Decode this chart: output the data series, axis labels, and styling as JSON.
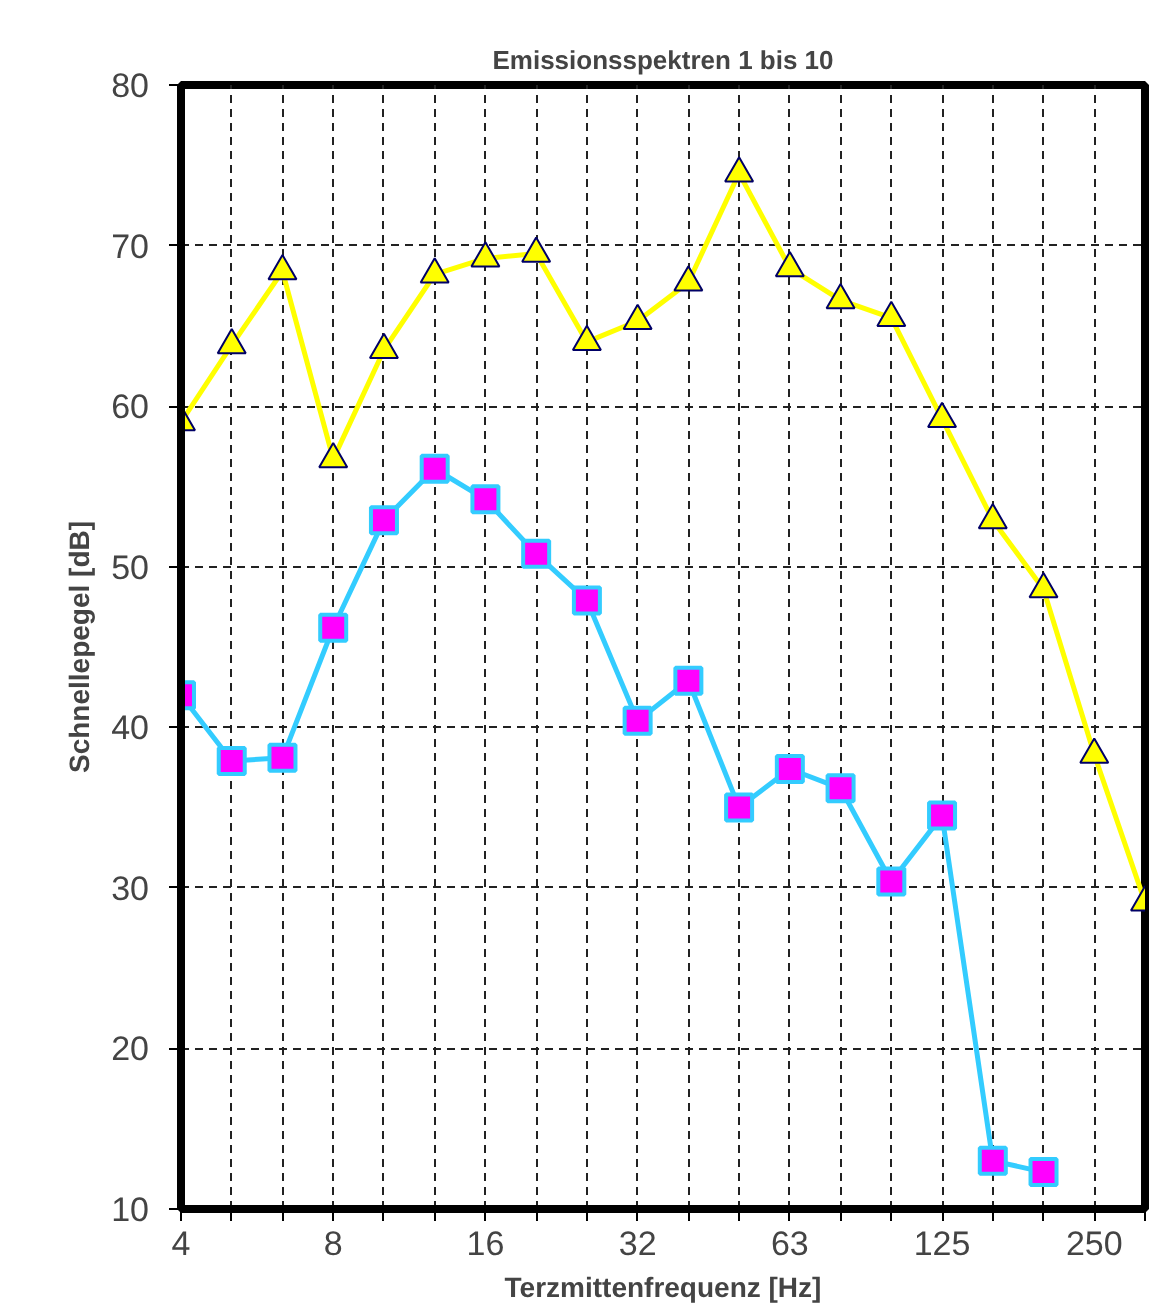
{
  "chart_data": {
    "type": "line",
    "title": "Emissionsspektren 1 bis 10",
    "xlabel": "Terzmittenfrequenz [Hz]",
    "ylabel": "Schnellepegel [dB]",
    "categories": [
      "4",
      null,
      null,
      "8",
      null,
      null,
      "16",
      null,
      null,
      "32",
      null,
      null,
      "63",
      null,
      null,
      "125",
      null,
      null,
      "250",
      null
    ],
    "ylim": [
      10,
      80
    ],
    "yticks": [
      10,
      20,
      30,
      40,
      50,
      60,
      70,
      80
    ],
    "grid": true,
    "line_style": "solid",
    "series": [
      {
        "color": "#ffff00",
        "marker": "triangle",
        "values": [
          59.0,
          63.8,
          68.4,
          56.7,
          63.5,
          68.2,
          69.2,
          69.5,
          64.0,
          65.3,
          67.7,
          74.5,
          68.6,
          66.6,
          65.5,
          59.2,
          52.9,
          48.6,
          38.3,
          29.1
        ]
      },
      {
        "color": "#33ccff",
        "marker": "square",
        "colors": [
          "#ff00ff",
          "#ff00ff",
          "#ff00ff",
          "#ff00ff",
          "#ff00ff",
          "#ff00ff",
          "#ff00ff",
          "#ff00ff",
          "#ff00ff",
          "#ff00ff",
          "#ff00ff",
          "#ff00ff",
          "#ff00ff",
          "#ff00ff",
          "#ff00ff",
          "#ff00ff",
          "#ff00ff",
          "#ff00ff",
          "#ff00ff",
          "#ff00ff"
        ],
        "values": [
          42.0,
          37.9,
          38.1,
          46.2,
          52.9,
          56.1,
          54.2,
          50.8,
          47.9,
          40.4,
          42.9,
          35.0,
          37.4,
          36.2,
          30.4,
          34.5,
          13.0,
          12.3,
          null,
          null
        ]
      }
    ]
  }
}
